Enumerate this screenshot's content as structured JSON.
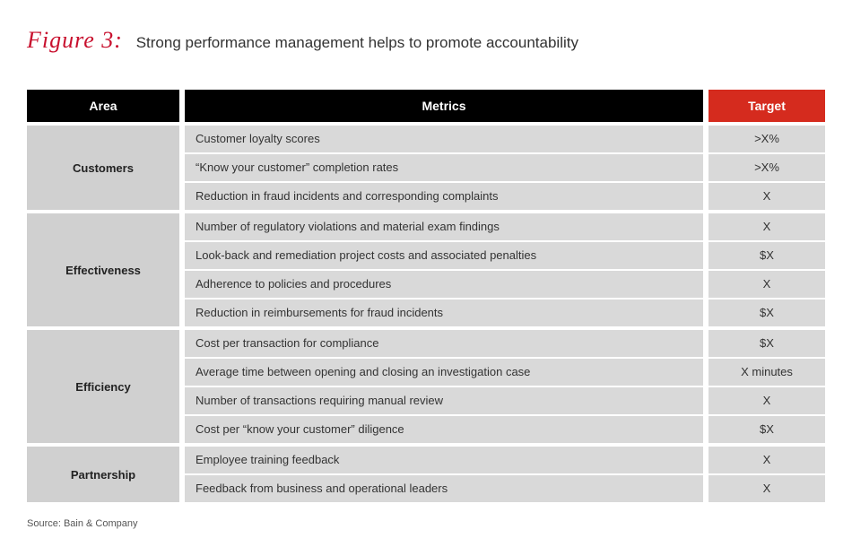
{
  "figure": {
    "label": "Figure 3:",
    "title": "Strong performance management helps to promote accountability"
  },
  "columns": {
    "area": "Area",
    "metrics": "Metrics",
    "target": "Target"
  },
  "colors": {
    "header_area_bg": "#000000",
    "header_metrics_bg": "#000000",
    "header_target_bg": "#d52b1e",
    "header_fg": "#ffffff",
    "area_cell_bg": "#d0d0d0",
    "data_cell_bg": "#d9d9d9",
    "figure_label_color": "#c8102e"
  },
  "groups": [
    {
      "area": "Customers",
      "rows": [
        {
          "metric": "Customer loyalty scores",
          "target": ">X%"
        },
        {
          "metric": "“Know your customer” completion rates",
          "target": ">X%"
        },
        {
          "metric": "Reduction in fraud incidents and corresponding complaints",
          "target": "X"
        }
      ]
    },
    {
      "area": "Effectiveness",
      "rows": [
        {
          "metric": "Number of regulatory violations and material exam findings",
          "target": "X"
        },
        {
          "metric": "Look-back and remediation project costs and associated penalties",
          "target": "$X"
        },
        {
          "metric": "Adherence to policies and procedures",
          "target": "X"
        },
        {
          "metric": "Reduction in reimbursements for fraud incidents",
          "target": "$X"
        }
      ]
    },
    {
      "area": "Efficiency",
      "rows": [
        {
          "metric": "Cost per transaction for compliance",
          "target": "$X"
        },
        {
          "metric": "Average time between opening and closing an investigation case",
          "target": "X minutes"
        },
        {
          "metric": "Number of transactions requiring manual review",
          "target": "X"
        },
        {
          "metric": "Cost per “know your customer” diligence",
          "target": "$X"
        }
      ]
    },
    {
      "area": "Partnership",
      "rows": [
        {
          "metric": "Employee training feedback",
          "target": "X"
        },
        {
          "metric": "Feedback from business and operational leaders",
          "target": "X"
        }
      ]
    }
  ],
  "source": "Source: Bain & Company"
}
